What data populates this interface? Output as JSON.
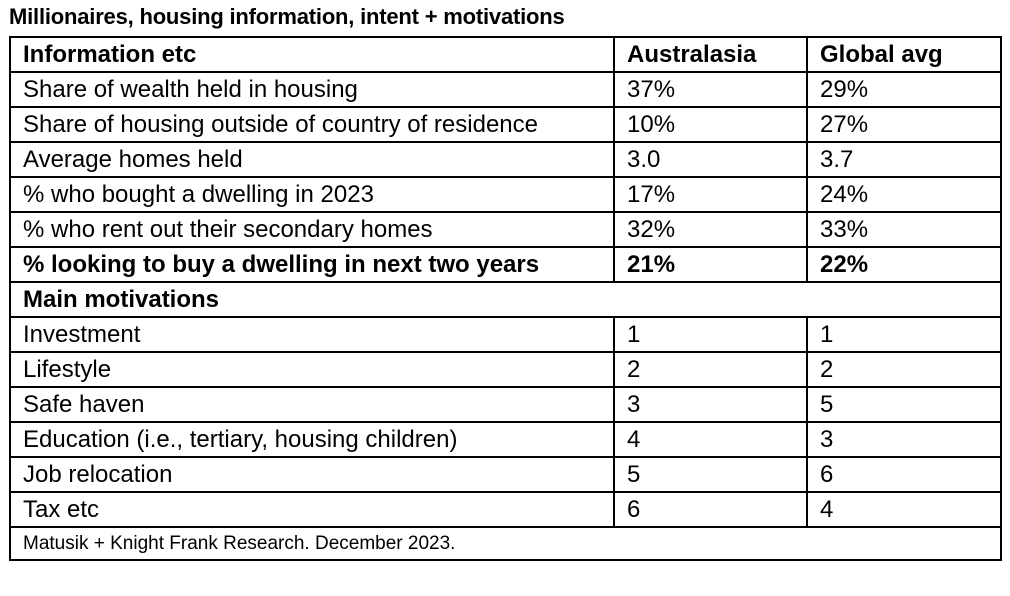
{
  "title": "Millionaires, housing information, intent + motivations",
  "header": {
    "col1": "Information etc",
    "col2": "Australasia",
    "col3": "Global avg"
  },
  "info_rows": [
    {
      "label": "Share of wealth held in housing",
      "australasia": "37%",
      "global": "29%"
    },
    {
      "label": "Share of housing outside of country of residence",
      "australasia": "10%",
      "global": "27%"
    },
    {
      "label": "Average homes held",
      "australasia": "3.0",
      "global": "3.7"
    },
    {
      "label": "% who bought a dwelling in 2023",
      "australasia": "17%",
      "global": "24%"
    },
    {
      "label": "% who rent out their secondary homes",
      "australasia": "32%",
      "global": "33%"
    },
    {
      "label": "% looking to buy a dwelling in next two years",
      "australasia": "21%",
      "global": "22%"
    }
  ],
  "motivations_heading": "Main motivations",
  "motivation_rows": [
    {
      "label": "Investment",
      "australasia": "1",
      "global": "1"
    },
    {
      "label": "Lifestyle",
      "australasia": "2",
      "global": "2"
    },
    {
      "label": "Safe haven",
      "australasia": "3",
      "global": "5"
    },
    {
      "label": "Education (i.e., tertiary, housing children)",
      "australasia": "4",
      "global": "3"
    },
    {
      "label": "Job relocation",
      "australasia": "5",
      "global": "6"
    },
    {
      "label": "Tax etc",
      "australasia": "6",
      "global": "4"
    }
  ],
  "source": "Matusik + Knight Frank Research.  December 2023."
}
